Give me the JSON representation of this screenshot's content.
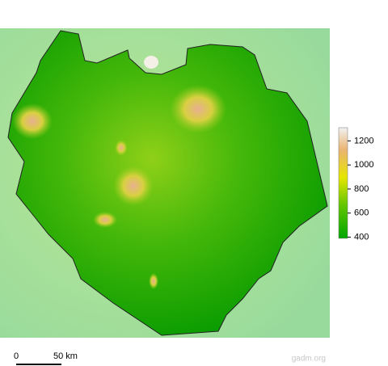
{
  "legend": {
    "ticks": [
      400,
      600,
      800,
      1000,
      1200
    ],
    "range": [
      390,
      1310
    ]
  },
  "scale_bar": {
    "start": "0",
    "end": "50 km"
  },
  "credit": "gadm.org"
}
